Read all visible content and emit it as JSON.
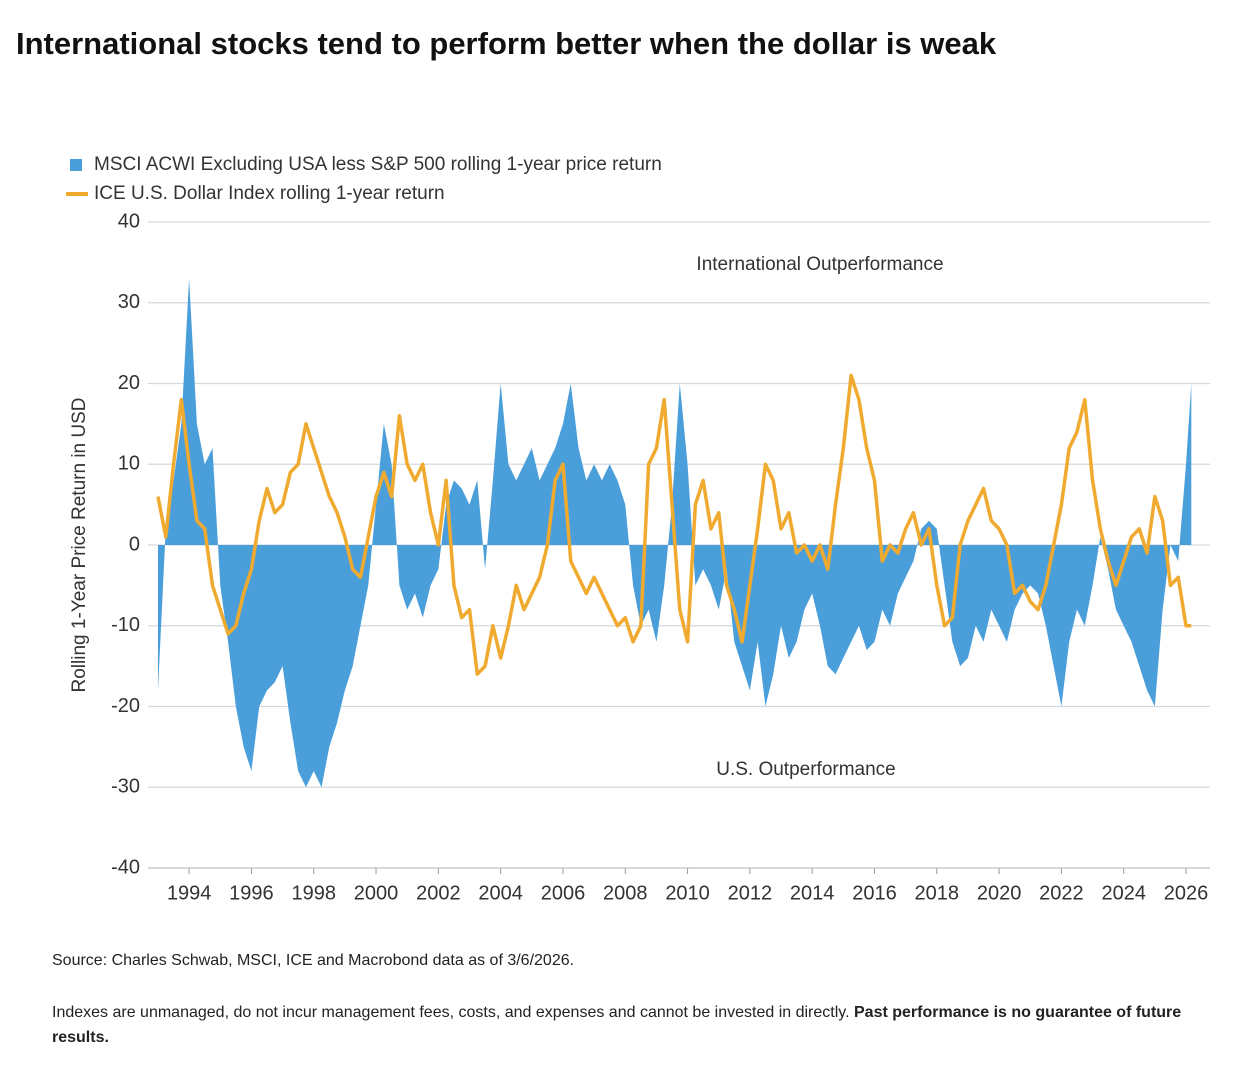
{
  "chart_data": {
    "type": "area-line",
    "title": "International stocks tend to perform better when the dollar is weak",
    "y_label": "Rolling 1-Year Price Return in USD",
    "annotations": [
      "International Outperformance",
      "U.S. Outperformance"
    ],
    "source": "Source: Charles Schwab, MSCI, ICE and Macrobond data as of 3/6/2026.",
    "disclaimer": "Indexes are unmanaged, do not incur management fees, costs, and expenses and cannot be invested in directly.",
    "disclaimer_bold": "Past performance is no guarantee of future results.",
    "xlim": [
      1992.68,
      2026.77
    ],
    "xticks": [
      1994,
      1996,
      1998,
      2000,
      2002,
      2004,
      2006,
      2008,
      2010,
      2012,
      2014,
      2016,
      2018,
      2020,
      2022,
      2024,
      2026
    ],
    "ylim": [
      -40,
      40
    ],
    "yticks": [
      -40,
      -30,
      -20,
      -10,
      0,
      10,
      20,
      30,
      40
    ],
    "grid": true,
    "x": [
      1993,
      1993.25,
      1993.5,
      1993.75,
      1994,
      1994.25,
      1994.5,
      1994.75,
      1995,
      1995.25,
      1995.5,
      1995.75,
      1996,
      1996.25,
      1996.5,
      1996.75,
      1997,
      1997.25,
      1997.5,
      1997.75,
      1998,
      1998.25,
      1998.5,
      1998.75,
      1999,
      1999.25,
      1999.5,
      1999.75,
      2000,
      2000.25,
      2000.5,
      2000.75,
      2001,
      2001.25,
      2001.5,
      2001.75,
      2002,
      2002.25,
      2002.5,
      2002.75,
      2003,
      2003.25,
      2003.5,
      2003.75,
      2004,
      2004.25,
      2004.5,
      2004.75,
      2005,
      2005.25,
      2005.5,
      2005.75,
      2006,
      2006.25,
      2006.5,
      2006.75,
      2007,
      2007.25,
      2007.5,
      2007.75,
      2008,
      2008.25,
      2008.5,
      2008.75,
      2009,
      2009.25,
      2009.5,
      2009.75,
      2010,
      2010.25,
      2010.5,
      2010.75,
      2011,
      2011.25,
      2011.5,
      2011.75,
      2012,
      2012.25,
      2012.5,
      2012.75,
      2013,
      2013.25,
      2013.5,
      2013.75,
      2014,
      2014.25,
      2014.5,
      2014.75,
      2015,
      2015.25,
      2015.5,
      2015.75,
      2016,
      2016.25,
      2016.5,
      2016.75,
      2017,
      2017.25,
      2017.5,
      2017.75,
      2018,
      2018.25,
      2018.5,
      2018.75,
      2019,
      2019.25,
      2019.5,
      2019.75,
      2020,
      2020.25,
      2020.5,
      2020.75,
      2021,
      2021.25,
      2021.5,
      2021.75,
      2022,
      2022.25,
      2022.5,
      2022.75,
      2023,
      2023.25,
      2023.5,
      2023.75,
      2024,
      2024.25,
      2024.5,
      2024.75,
      2025,
      2025.25,
      2025.5,
      2025.75,
      2026,
      2026.17
    ],
    "series": [
      {
        "name": "MSCI ACWI Excluding USA less S&P 500 rolling 1-year price return",
        "color": "#4a9fdb",
        "kind": "area",
        "values": [
          -18,
          2,
          8,
          15,
          33,
          15,
          10,
          12,
          -5,
          -12,
          -20,
          -25,
          -28,
          -20,
          -18,
          -17,
          -15,
          -22,
          -28,
          -30,
          -28,
          -30,
          -25,
          -22,
          -18,
          -15,
          -10,
          -5,
          5,
          15,
          10,
          -5,
          -8,
          -6,
          -9,
          -5,
          -3,
          5,
          8,
          7,
          5,
          8,
          -3,
          8,
          20,
          10,
          8,
          10,
          12,
          8,
          10,
          12,
          15,
          20,
          12,
          8,
          10,
          8,
          10,
          8,
          5,
          -5,
          -10,
          -8,
          -12,
          -5,
          5,
          20,
          10,
          -5,
          -3,
          -5,
          -8,
          -3,
          -12,
          -15,
          -18,
          -12,
          -20,
          -16,
          -10,
          -14,
          -12,
          -8,
          -6,
          -10,
          -15,
          -16,
          -14,
          -12,
          -10,
          -13,
          -12,
          -8,
          -10,
          -6,
          -4,
          -2,
          2,
          3,
          2,
          -5,
          -12,
          -15,
          -14,
          -10,
          -12,
          -8,
          -10,
          -12,
          -8,
          -6,
          -5,
          -6,
          -10,
          -15,
          -20,
          -12,
          -8,
          -10,
          -5,
          1,
          -3,
          -8,
          -10,
          -12,
          -15,
          -18,
          -20,
          -8,
          0,
          -2,
          10,
          20
        ]
      },
      {
        "name": "ICE U.S. Dollar Index rolling 1-year return",
        "color": "#f0aa30",
        "kind": "line",
        "values": [
          6,
          1,
          10,
          18,
          10,
          3,
          2,
          -5,
          -8,
          -11,
          -10,
          -6,
          -3,
          3,
          7,
          4,
          5,
          9,
          10,
          15,
          12,
          9,
          6,
          4,
          1,
          -3,
          -4,
          1,
          6,
          9,
          6,
          16,
          10,
          8,
          10,
          4,
          0,
          8,
          -5,
          -9,
          -8,
          -16,
          -15,
          -10,
          -14,
          -10,
          -5,
          -8,
          -6,
          -4,
          0,
          8,
          10,
          -2,
          -4,
          -6,
          -4,
          -6,
          -8,
          -10,
          -9,
          -12,
          -10,
          10,
          12,
          18,
          5,
          -8,
          -12,
          5,
          8,
          2,
          4,
          -5,
          -8,
          -12,
          -5,
          2,
          10,
          8,
          2,
          4,
          -1,
          0,
          -2,
          0,
          -3,
          5,
          12,
          21,
          18,
          12,
          8,
          -2,
          0,
          -1,
          2,
          4,
          0,
          2,
          -5,
          -10,
          -9,
          0,
          3,
          5,
          7,
          3,
          2,
          0,
          -6,
          -5,
          -7,
          -8,
          -5,
          0,
          5,
          12,
          14,
          18,
          8,
          2,
          -2,
          -5,
          -2,
          1,
          2,
          -1,
          6,
          3,
          -5,
          -4,
          -10,
          -10
        ]
      }
    ]
  }
}
